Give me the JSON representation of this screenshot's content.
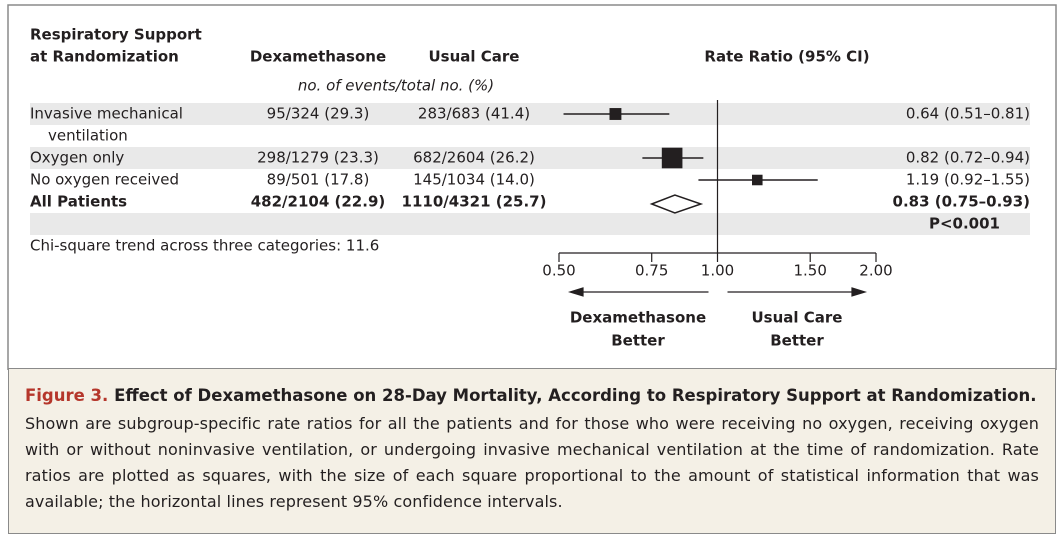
{
  "chart_data": {
    "type": "forest",
    "column_headers": {
      "group": [
        "Respiratory Support",
        "at Randomization"
      ],
      "dexamethasone": "Dexamethasone",
      "usual_care": "Usual Care",
      "ratio": "Rate Ratio (95% CI)"
    },
    "subheader": "no. of events/total no. (%)",
    "categories": [
      [
        "Invasive mechanical",
        "ventilation"
      ],
      [
        "Oxygen only"
      ],
      [
        "No oxygen received"
      ],
      [
        "All Patients"
      ]
    ],
    "summary": [
      false,
      false,
      false,
      true
    ],
    "dexamethasone": [
      "95/324 (29.3)",
      "298/1279 (23.3)",
      "89/501 (17.8)",
      "482/2104 (22.9)"
    ],
    "usual_care": [
      "283/683 (41.4)",
      "682/2604 (26.2)",
      "145/1034 (14.0)",
      "1110/4321 (25.7)"
    ],
    "values": [
      0.64,
      0.82,
      1.19,
      0.83
    ],
    "ci_low": [
      0.51,
      0.72,
      0.92,
      0.75
    ],
    "ci_high": [
      0.81,
      0.94,
      1.55,
      0.93
    ],
    "value_labels": [
      "0.64 (0.51–0.81)",
      "0.82 (0.72–0.94)",
      "1.19 (0.92–1.55)",
      "0.83 (0.75–0.93)"
    ],
    "overall_p": "P<0.001",
    "footnote": "Chi-square trend across three categories: 11.6",
    "xscale": "log",
    "xlim": [
      0.5,
      2
    ],
    "xticks": [
      {
        "value": 0.5,
        "label": "0.50"
      },
      {
        "value": 0.75,
        "label": "0.75"
      },
      {
        "value": 1,
        "label": "1.00"
      },
      {
        "value": 1.5,
        "label": "1.50"
      },
      {
        "value": 2,
        "label": "2.00"
      }
    ],
    "ref_line": 1,
    "direction_labels": {
      "left": [
        "Dexamethasone",
        "Better"
      ],
      "right": [
        "Usual Care",
        "Better"
      ]
    },
    "color": "#231f20"
  },
  "caption": {
    "label": "Figure 3.",
    "title": "Effect of Dexamethasone on 28-Day Mortality, According to Respiratory Support at Randomization.",
    "body": "Shown are subgroup-specific rate ratios for all the patients and for those who were receiving no oxygen, receiving oxygen with or without noninvasive ventilation, or undergoing invasive mechanical ventilation at the time of randomization. Rate ratios are plotted as squares, with the size of each square proportional to the amount of statistical information that was available; the horizontal lines represent 95% confidence intervals."
  }
}
